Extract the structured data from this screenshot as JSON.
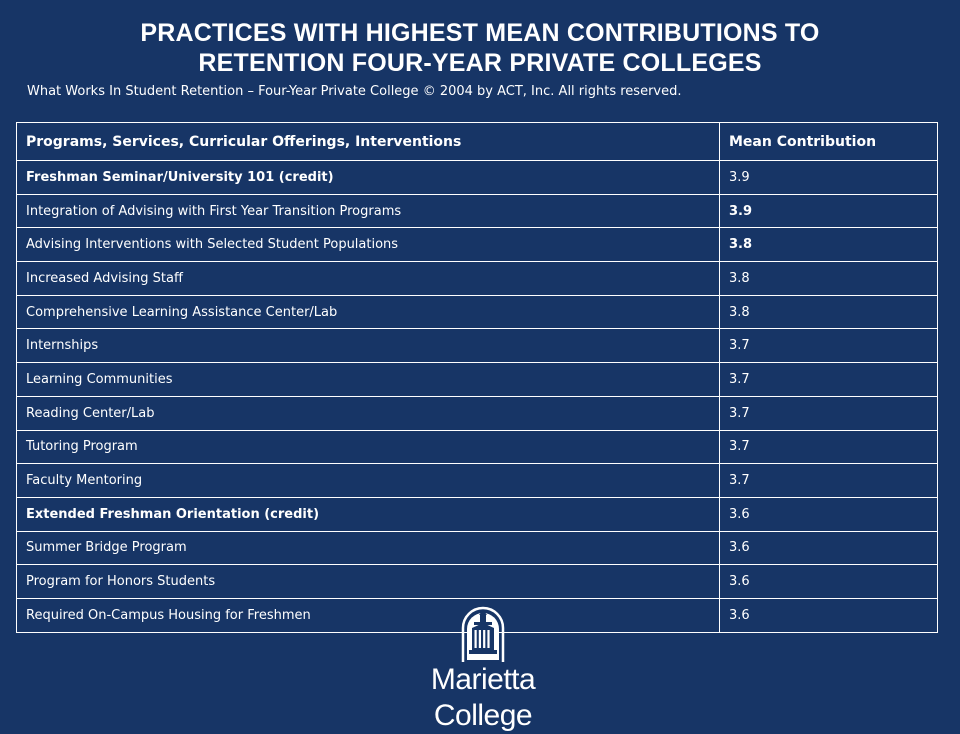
{
  "title": {
    "line1": "PRACTICES WITH HIGHEST MEAN CONTRIBUTIONS TO",
    "line2": "RETENTION FOUR-YEAR PRIVATE COLLEGES"
  },
  "subtitle": "What Works In Student Retention – Four-Year Private College © 2004 by ACT, Inc. All rights reserved.",
  "table": {
    "headers": [
      "Programs, Services, Curricular Offerings, Interventions",
      "Mean Contribution"
    ],
    "rows": [
      {
        "practice": "Freshman Seminar/University 101 (credit)",
        "value": "3.9",
        "practice_bold": true,
        "value_bold": false
      },
      {
        "practice": "Integration of Advising with First Year Transition Programs",
        "value": "3.9",
        "practice_bold": false,
        "value_bold": true
      },
      {
        "practice": "Advising Interventions with Selected Student Populations",
        "value": "3.8",
        "practice_bold": false,
        "value_bold": true
      },
      {
        "practice": "Increased Advising Staff",
        "value": "3.8",
        "practice_bold": false,
        "value_bold": false
      },
      {
        "practice": "Comprehensive Learning Assistance Center/Lab",
        "value": "3.8",
        "practice_bold": false,
        "value_bold": false
      },
      {
        "practice": "Internships",
        "value": "3.7",
        "practice_bold": false,
        "value_bold": false
      },
      {
        "practice": "Learning Communities",
        "value": "3.7",
        "practice_bold": false,
        "value_bold": false
      },
      {
        "practice": "Reading Center/Lab",
        "value": "3.7",
        "practice_bold": false,
        "value_bold": false
      },
      {
        "practice": "Tutoring Program",
        "value": "3.7",
        "practice_bold": false,
        "value_bold": false
      },
      {
        "practice": "Faculty Mentoring",
        "value": "3.7",
        "practice_bold": false,
        "value_bold": false
      },
      {
        "practice": "Extended Freshman Orientation (credit)",
        "value": "3.6",
        "practice_bold": true,
        "value_bold": false
      },
      {
        "practice": "Summer Bridge Program",
        "value": "3.6",
        "practice_bold": false,
        "value_bold": false
      },
      {
        "practice": "Program for Honors Students",
        "value": "3.6",
        "practice_bold": false,
        "value_bold": false
      },
      {
        "practice": "Required On-Campus Housing for Freshmen",
        "value": "3.6",
        "practice_bold": false,
        "value_bold": false
      }
    ]
  },
  "logo": {
    "name": "Marietta College",
    "icon": "college-seal-icon"
  },
  "colors": {
    "background": "#173566",
    "text": "#ffffff"
  }
}
